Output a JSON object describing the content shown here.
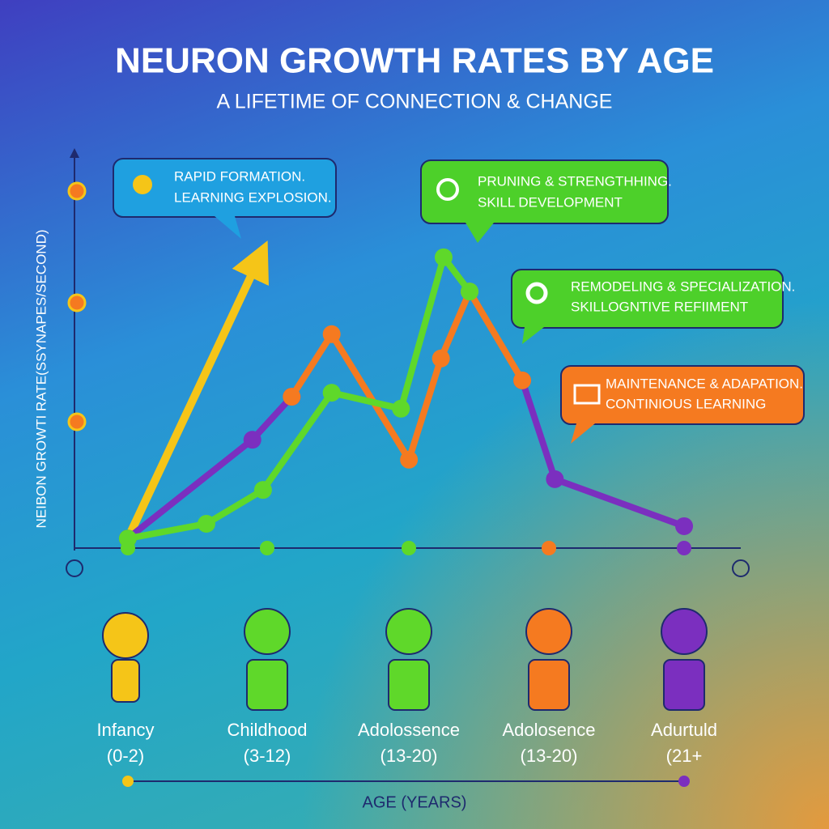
{
  "chart_data": {
    "type": "line",
    "title": "NEURON GROWTH RATES BY AGE",
    "subtitle": "A LIFETIME OF CONNECTION & CHANGE",
    "y_label": "NEIBON GROWTI RATE(SSYNAPES/SECOND)",
    "x_label": "AGE (YEARS)",
    "xlim": [
      0,
      100
    ],
    "ylim": [
      0,
      100
    ],
    "series": [
      {
        "color": "#f5c518",
        "x": [
          8.0,
          27.7
        ],
        "values": [
          2.4,
          72.6
        ]
      },
      {
        "color": "#7b2fbf",
        "x": [
          8.0,
          26.7,
          32.6,
          null,
          67.2,
          72.1,
          91.5
        ],
        "values": [
          2.4,
          27.2,
          38.0,
          null,
          42.1,
          17.3,
          5.5
        ]
      },
      {
        "color": "#f57a20",
        "x": [
          32.6,
          38.6,
          50.2,
          55.0,
          59.3,
          67.2
        ],
        "values": [
          38.0,
          53.7,
          22.2,
          47.6,
          64.4,
          42.1
        ]
      },
      {
        "color": "#5fd82a",
        "x": [
          8.0,
          19.8,
          28.3,
          38.6,
          49.0,
          55.4,
          59.3
        ],
        "values": [
          2.4,
          6.1,
          14.6,
          39.0,
          35.0,
          73.0,
          64.4
        ]
      }
    ],
    "annotations": [
      {
        "lines": [
          "RAPID FORMATION.",
          "LEARNING EXPLOSION."
        ]
      },
      {
        "lines": [
          "PRUNING & STRENGTHHING.",
          "SKILL DEVELOPMENT"
        ]
      },
      {
        "lines": [
          "REMODELING & SPECIALIZATION.",
          "SKILLOGNTIVE REFIIMENT"
        ]
      },
      {
        "lines": [
          "MAINTENANCE & ADAPATION.",
          "CONTINIOUS LEARNING"
        ]
      }
    ],
    "age_groups": [
      {
        "name": "Infancy",
        "range": "(0-2)"
      },
      {
        "name": "Childhood",
        "range": "(3-12)"
      },
      {
        "name": "Adolossence",
        "range": "(13-20)"
      },
      {
        "name": "Adolosence",
        "range": "(13-20)"
      },
      {
        "name": "Adurtuld",
        "range": "(21+"
      }
    ]
  }
}
